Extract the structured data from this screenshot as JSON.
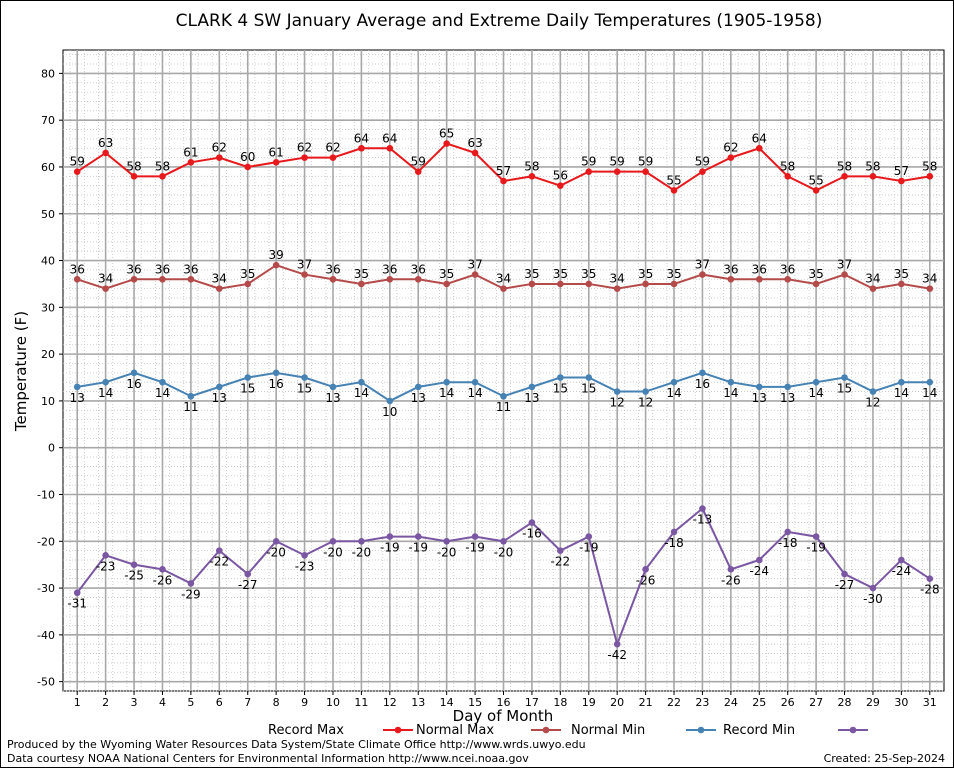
{
  "chart_data": {
    "type": "line",
    "title": "CLARK 4 SW January Average and Extreme Daily Temperatures (1905-1958)",
    "xlabel": "Day of Month",
    "ylabel": "Temperature (F)",
    "x": [
      "1",
      "2",
      "3",
      "4",
      "5",
      "6",
      "7",
      "8",
      "9",
      "10",
      "11",
      "12",
      "13",
      "14",
      "15",
      "16",
      "17",
      "18",
      "19",
      "20",
      "21",
      "22",
      "23",
      "24",
      "25",
      "26",
      "27",
      "28",
      "29",
      "30",
      "31"
    ],
    "yticks": [
      "80",
      "70",
      "60",
      "50",
      "40",
      "30",
      "20",
      "10",
      "0",
      "-10",
      "-20",
      "-30",
      "-40",
      "-50"
    ],
    "ylim": [
      -52,
      85
    ],
    "grid": true,
    "legend_position": "bottom",
    "series": [
      {
        "name": "Record Max",
        "color": "#e8191c",
        "values": [
          59,
          63,
          58,
          58,
          61,
          62,
          60,
          61,
          62,
          62,
          64,
          64,
          59,
          65,
          63,
          57,
          58,
          56,
          59,
          59,
          59,
          55,
          59,
          62,
          64,
          58,
          55,
          58,
          58,
          57,
          58
        ]
      },
      {
        "name": "Normal Max",
        "color": "#b54a4a",
        "values": [
          36,
          34,
          36,
          36,
          36,
          34,
          35,
          39,
          37,
          36,
          35,
          36,
          36,
          35,
          37,
          34,
          35,
          35,
          35,
          34,
          35,
          35,
          37,
          36,
          36,
          36,
          35,
          37,
          34,
          35,
          34
        ]
      },
      {
        "name": "Normal Min",
        "color": "#4682b4",
        "values": [
          13,
          14,
          16,
          14,
          11,
          13,
          15,
          16,
          15,
          13,
          14,
          10,
          13,
          14,
          14,
          11,
          13,
          15,
          15,
          12,
          12,
          14,
          16,
          14,
          13,
          13,
          14,
          15,
          12,
          14,
          14
        ]
      },
      {
        "name": "Record Min",
        "color": "#7b57a3",
        "values": [
          -31,
          -23,
          -25,
          -26,
          -29,
          -22,
          -27,
          -20,
          -23,
          -20,
          -20,
          -19,
          -19,
          -20,
          -19,
          -20,
          -16,
          -22,
          -19,
          -42,
          -26,
          -18,
          -13,
          -26,
          -24,
          -18,
          -19,
          -27,
          -30,
          -24,
          -28
        ]
      }
    ]
  },
  "footer": {
    "produced_by": "Produced by the Wyoming Water Resources Data System/State Climate Office http://www.wrds.uwyo.edu",
    "data_courtesy": "Data courtesy NOAA National Centers for Environmental Information http://www.ncei.noaa.gov",
    "created": "Created: 25-Sep-2024"
  }
}
